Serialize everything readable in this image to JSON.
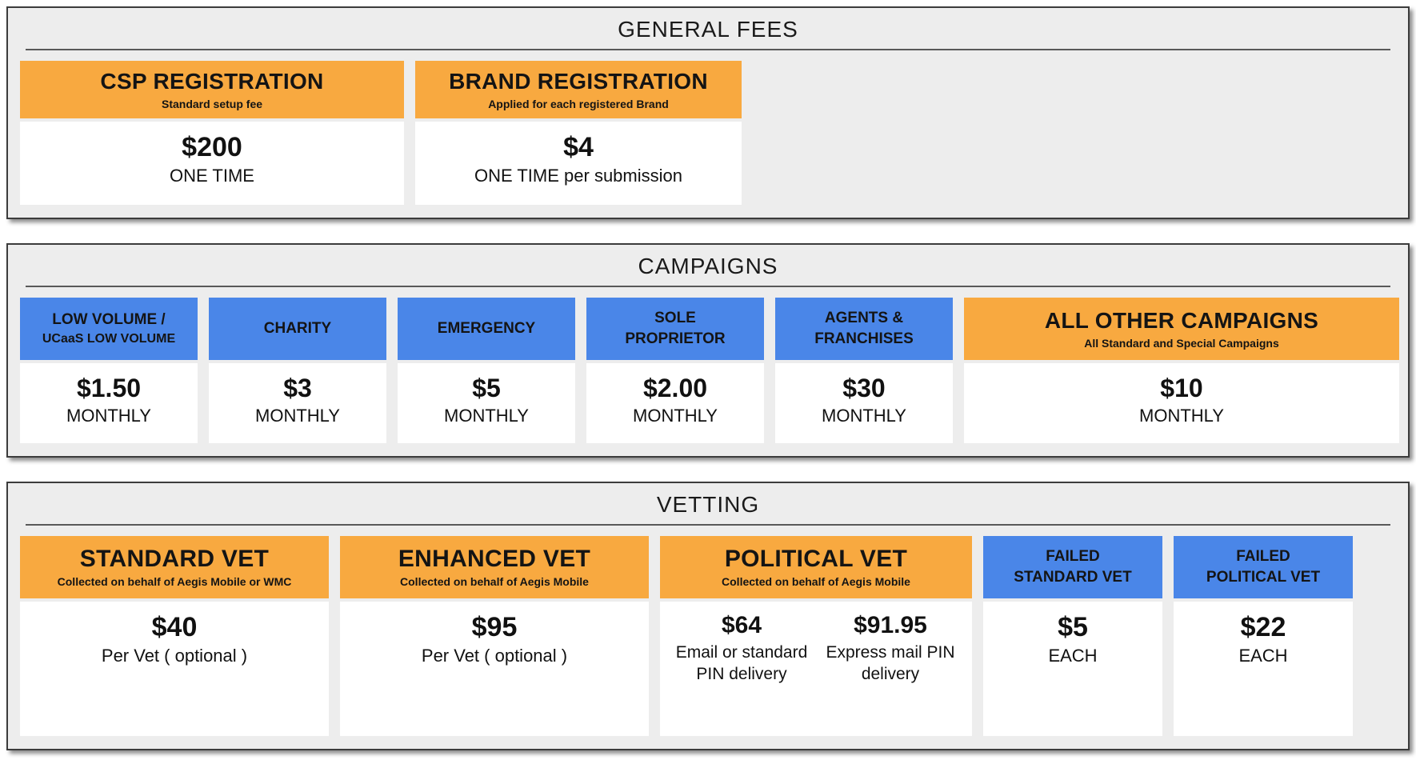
{
  "colors": {
    "header_orange": "#F8A940",
    "header_blue": "#4A86E8",
    "panel_background": "#EDEDED",
    "card_background": "#FFFFFF",
    "panel_border": "#3C3C3C",
    "divider": "#595959",
    "text": "#111111"
  },
  "general_fees": {
    "title": "GENERAL FEES",
    "csp": {
      "header": "CSP REGISTRATION",
      "sub": "Standard setup fee",
      "price": "$200",
      "label": "ONE TIME"
    },
    "brand": {
      "header": "BRAND REGISTRATION",
      "sub": "Applied for each registered Brand",
      "price": "$4",
      "label": "ONE TIME per submission"
    }
  },
  "campaigns": {
    "title": "CAMPAIGNS",
    "low_volume": {
      "header_line1": "LOW VOLUME /",
      "header_line2": "UCaaS LOW VOLUME",
      "price": "$1.50",
      "label": "MONTHLY"
    },
    "charity": {
      "header": "CHARITY",
      "price": "$3",
      "label": "MONTHLY"
    },
    "emergency": {
      "header": "EMERGENCY",
      "price": "$5",
      "label": "MONTHLY"
    },
    "sole_proprietor": {
      "header_line1": "SOLE",
      "header_line2": "PROPRIETOR",
      "price": "$2.00",
      "label": "MONTHLY"
    },
    "agents_franchises": {
      "header_line1": "AGENTS &",
      "header_line2": "FRANCHISES",
      "price": "$30",
      "label": "MONTHLY"
    },
    "all_other": {
      "header": "ALL OTHER CAMPAIGNS",
      "sub": "All Standard and Special Campaigns",
      "price": "$10",
      "label": "MONTHLY"
    }
  },
  "vetting": {
    "title": "VETTING",
    "standard": {
      "header": "STANDARD VET",
      "sub": "Collected on behalf of Aegis Mobile or WMC",
      "price": "$40",
      "label": "Per Vet ( optional )"
    },
    "enhanced": {
      "header": "ENHANCED VET",
      "sub": "Collected on behalf of Aegis Mobile",
      "price": "$95",
      "label": "Per Vet ( optional )"
    },
    "political": {
      "header": "POLITICAL VET",
      "sub": "Collected on behalf of Aegis Mobile",
      "option1": {
        "price": "$64",
        "label": "Email or standard PIN delivery"
      },
      "option2": {
        "price": "$91.95",
        "label": "Express mail PIN delivery"
      }
    },
    "failed_standard": {
      "header_line1": "FAILED",
      "header_line2": "STANDARD VET",
      "price": "$5",
      "label": "EACH"
    },
    "failed_political": {
      "header_line1": "FAILED",
      "header_line2": "POLITICAL VET",
      "price": "$22",
      "label": "EACH"
    }
  }
}
